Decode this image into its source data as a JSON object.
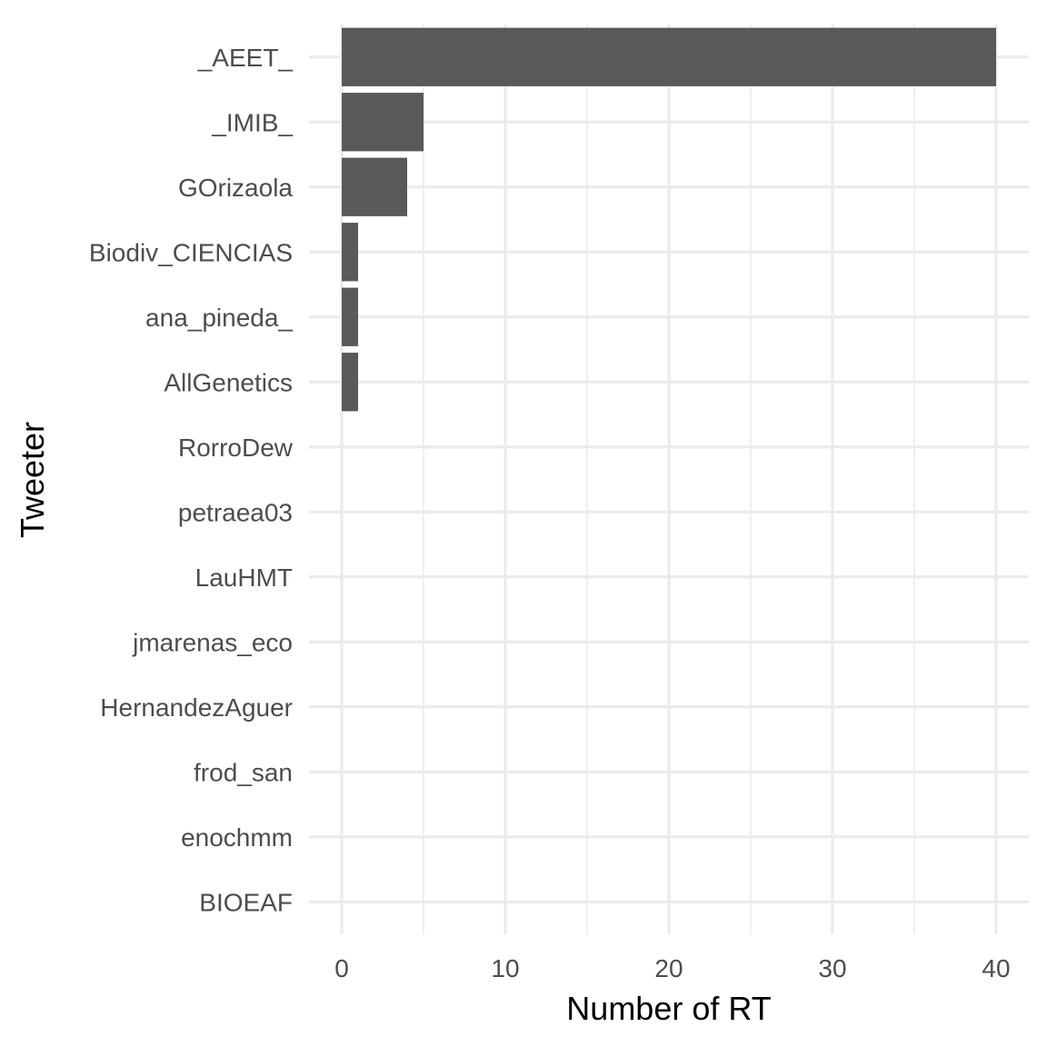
{
  "chart_data": {
    "type": "bar",
    "orientation": "horizontal",
    "xlabel": "Number of RT",
    "ylabel": "Tweeter",
    "categories": [
      "_AEET_",
      "_IMIB_",
      "GOrizaola",
      "Biodiv_CIENCIAS",
      "ana_pineda_",
      "AllGenetics",
      "RorroDew",
      "petraea03",
      "LauHMT",
      "jmarenas_eco",
      "HernandezAguer",
      "frod_san",
      "enochmm",
      "BIOEAF"
    ],
    "values": [
      40,
      5,
      4,
      1,
      1,
      1,
      0,
      0,
      0,
      0,
      0,
      0,
      0,
      0
    ],
    "x_ticks": [
      "0",
      "10",
      "20",
      "30",
      "40"
    ],
    "xlim": [
      -2,
      42
    ],
    "grid": true,
    "bar_color": "#595959",
    "grid_color": "#ebebeb"
  }
}
